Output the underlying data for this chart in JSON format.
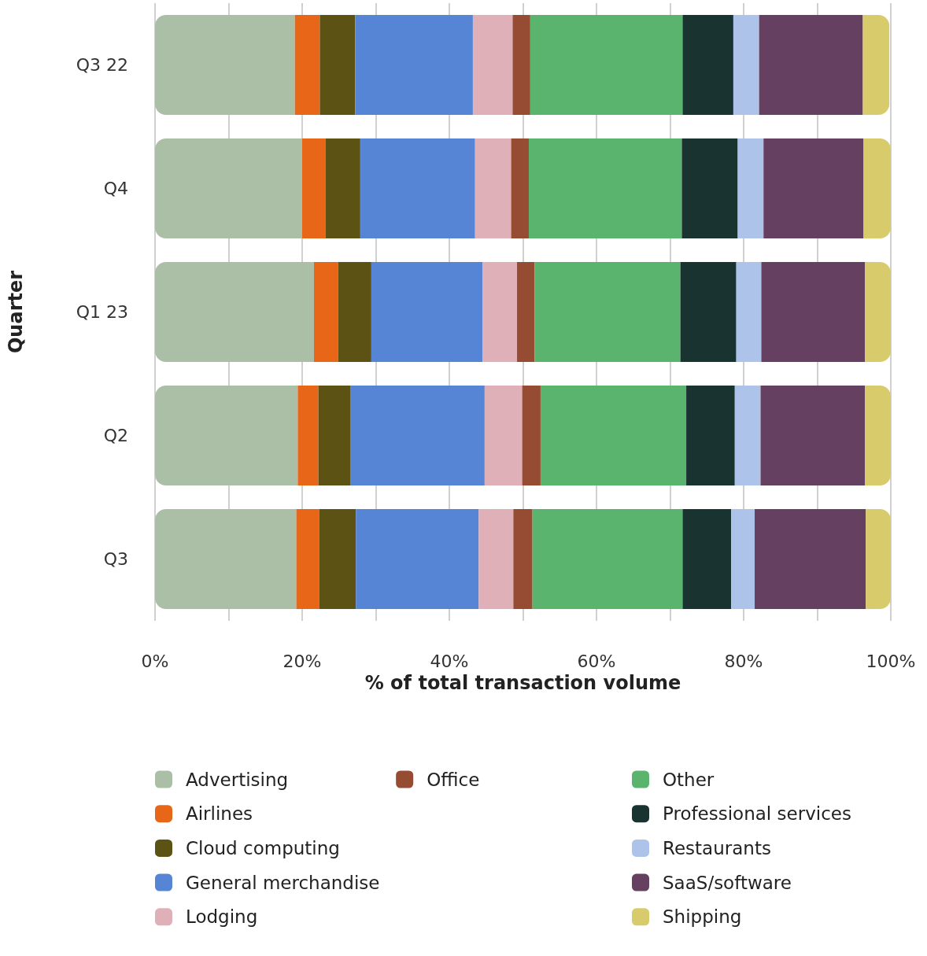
{
  "chart_data": {
    "type": "bar",
    "orientation": "horizontal",
    "stacked": true,
    "xlabel": "% of total transaction volume",
    "ylabel": "Quarter",
    "categories": [
      "Q3 22",
      "Q4",
      "Q1 23",
      "Q2",
      "Q3"
    ],
    "xlim": [
      0,
      100
    ],
    "xticks": [
      {
        "value": 0,
        "label": "0%"
      },
      {
        "value": 10,
        "label": null
      },
      {
        "value": 20,
        "label": "20%"
      },
      {
        "value": 30,
        "label": null
      },
      {
        "value": 40,
        "label": "40%"
      },
      {
        "value": 50,
        "label": null
      },
      {
        "value": 60,
        "label": "60%"
      },
      {
        "value": 70,
        "label": null
      },
      {
        "value": 80,
        "label": "80%"
      },
      {
        "value": 90,
        "label": null
      },
      {
        "value": 100,
        "label": "100%"
      }
    ],
    "grid": "x",
    "legend": "bottom",
    "series": [
      {
        "name": "Advertising",
        "color": "#abbea6",
        "values": [
          19.0,
          20.0,
          21.6,
          19.4,
          19.2
        ]
      },
      {
        "name": "Airlines",
        "color": "#e86618",
        "values": [
          3.4,
          3.2,
          3.3,
          2.8,
          3.1
        ]
      },
      {
        "name": "Cloud computing",
        "color": "#5c5213",
        "values": [
          4.8,
          4.7,
          4.5,
          4.4,
          5.0
        ]
      },
      {
        "name": "General merchandise",
        "color": "#5585d4",
        "values": [
          16.0,
          15.6,
          15.1,
          18.2,
          16.7
        ]
      },
      {
        "name": "Lodging",
        "color": "#dfb0b8",
        "values": [
          5.4,
          4.9,
          4.7,
          5.1,
          4.7
        ]
      },
      {
        "name": "Office",
        "color": "#954c33",
        "values": [
          2.4,
          2.4,
          2.4,
          2.5,
          2.6
        ]
      },
      {
        "name": "Other",
        "color": "#5ab46e",
        "values": [
          20.7,
          20.8,
          19.8,
          19.8,
          20.4
        ]
      },
      {
        "name": "Professional services",
        "color": "#193330",
        "values": [
          6.9,
          7.6,
          7.6,
          6.6,
          6.6
        ]
      },
      {
        "name": "Restaurants",
        "color": "#aec3ea",
        "values": [
          3.5,
          3.5,
          3.4,
          3.5,
          3.2
        ]
      },
      {
        "name": "SaaS/software",
        "color": "#654060",
        "values": [
          14.1,
          13.6,
          14.1,
          14.2,
          15.1
        ]
      },
      {
        "name": "Shipping",
        "color": "#d8cb6b",
        "values": [
          3.6,
          3.7,
          3.6,
          3.5,
          3.4
        ]
      }
    ]
  }
}
